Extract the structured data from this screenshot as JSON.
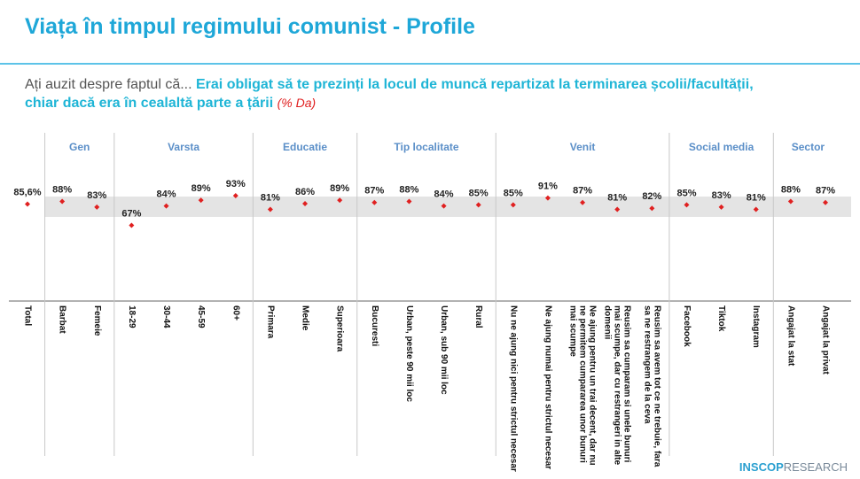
{
  "chart_data": {
    "type": "dot",
    "title": "Viața în timpul regimului comunist - Profile",
    "question_prefix": "Ați auzit despre faptul că...",
    "question": "Erai obligat să te prezinți la locul de muncă repartizat la terminarea școlii/facultății, chiar dacă era în cealaltă parte a țării",
    "unit_note": "(% Da)",
    "color": "#e02020",
    "total": {
      "categories": [
        "Total"
      ],
      "values": [
        85.6
      ],
      "value_labels": [
        "85,6%"
      ]
    },
    "groups": [
      {
        "name": "Gen",
        "categories": [
          "Barbat",
          "Femeie"
        ],
        "values": [
          88,
          83
        ],
        "value_labels": [
          "88%",
          "83%"
        ]
      },
      {
        "name": "Varsta",
        "categories": [
          "18-29",
          "30-44",
          "45-59",
          "60+"
        ],
        "values": [
          67,
          84,
          89,
          93
        ],
        "value_labels": [
          "67%",
          "84%",
          "89%",
          "93%"
        ]
      },
      {
        "name": "Educatie",
        "categories": [
          "Primara",
          "Medie",
          "Superioara"
        ],
        "values": [
          81,
          86,
          89
        ],
        "value_labels": [
          "81%",
          "86%",
          "89%"
        ]
      },
      {
        "name": "Tip localitate",
        "categories": [
          "Bucuresti",
          "Urban, peste 90 mii loc",
          "Urban, sub 90 mii loc",
          "Rural"
        ],
        "values": [
          87,
          88,
          84,
          85
        ],
        "value_labels": [
          "87%",
          "88%",
          "84%",
          "85%"
        ]
      },
      {
        "name": "Venit",
        "categories": [
          "Nu ne ajung nici pentru strictul necesar",
          "Ne ajung numai pentru strictul necesar",
          "Ne ajung pentru un trai decent, dar nu ne permitem cumpararea unor bunuri mai scumpe",
          "Reusim sa cumparam si unele bunuri mai scumpe, dar cu restrangeri in alte domenii",
          "Reusim sa avem tot ce ne trebuie, fara sa ne restrangem de la ceva"
        ],
        "values": [
          85,
          91,
          87,
          81,
          82
        ],
        "value_labels": [
          "85%",
          "91%",
          "87%",
          "81%",
          "82%"
        ]
      },
      {
        "name": "Social media",
        "categories": [
          "Facebook",
          "Tiktok",
          "Instagram"
        ],
        "values": [
          85,
          83,
          81
        ],
        "value_labels": [
          "85%",
          "83%",
          "81%"
        ]
      },
      {
        "name": "Sector",
        "categories": [
          "Angajat la stat",
          "Angajat la privat"
        ],
        "values": [
          88,
          87
        ],
        "value_labels": [
          "88%",
          "87%"
        ]
      }
    ],
    "logo": {
      "brand": "INSCOP",
      "suffix": "RESEARCH"
    }
  }
}
